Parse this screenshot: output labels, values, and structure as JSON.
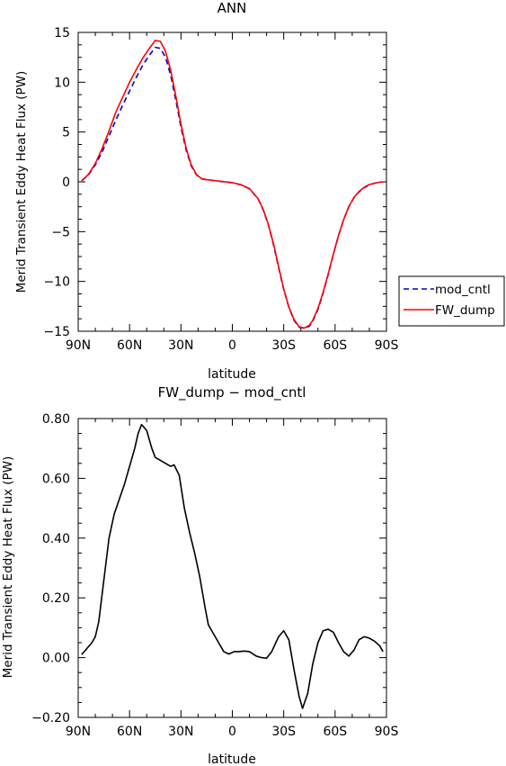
{
  "chart_data": [
    {
      "type": "line",
      "title": "ANN",
      "xlabel": "latitude",
      "ylabel": "Merid Transient Eddy Heat Flux (PW)",
      "xlim": [
        90,
        -90
      ],
      "ylim": [
        -15,
        15
      ],
      "xticks": [
        90,
        60,
        30,
        0,
        -30,
        -60,
        -90
      ],
      "xtick_labels": [
        "90N",
        "60N",
        "30N",
        "0",
        "30S",
        "60S",
        "90S"
      ],
      "yticks": [
        15,
        10,
        5,
        0,
        -5,
        -10,
        -15
      ],
      "ytick_labels": [
        "15",
        "10",
        "5",
        "0",
        "−5",
        "−10",
        "−15"
      ],
      "legend_position": "right",
      "series": [
        {
          "name": "mod_cntl",
          "color": "#0000cc",
          "style": "dashed",
          "x": [
            88,
            84,
            80,
            76,
            72,
            68,
            64,
            60,
            56,
            52,
            48,
            45,
            42,
            39,
            36,
            33,
            30,
            27,
            24,
            21,
            18,
            15,
            10,
            5,
            0,
            -5,
            -10,
            -15,
            -18,
            -21,
            -24,
            -27,
            -30,
            -33,
            -36,
            -39,
            -42,
            -45,
            -47,
            -50,
            -53,
            -56,
            -59,
            -62,
            -65,
            -68,
            -71,
            -74,
            -77,
            -80,
            -84,
            -88
          ],
          "y": [
            0.1,
            0.7,
            1.7,
            3.0,
            4.6,
            6.2,
            7.7,
            9.1,
            10.5,
            11.8,
            12.8,
            13.5,
            13.4,
            12.5,
            10.7,
            8.2,
            5.5,
            3.2,
            1.6,
            0.7,
            0.3,
            0.2,
            0.1,
            0.0,
            -0.1,
            -0.3,
            -0.7,
            -1.7,
            -2.8,
            -4.3,
            -6.3,
            -8.6,
            -10.8,
            -12.6,
            -13.9,
            -14.6,
            -14.7,
            -14.5,
            -14.0,
            -12.8,
            -11.2,
            -9.3,
            -7.3,
            -5.4,
            -3.8,
            -2.5,
            -1.6,
            -1.0,
            -0.6,
            -0.3,
            -0.1,
            0.0
          ]
        },
        {
          "name": "FW_dump",
          "color": "#ff0000",
          "style": "solid",
          "x": [
            88,
            84,
            80,
            76,
            72,
            68,
            64,
            60,
            56,
            52,
            48,
            45,
            42,
            39,
            36,
            33,
            30,
            27,
            24,
            21,
            18,
            15,
            10,
            5,
            0,
            -5,
            -10,
            -15,
            -18,
            -21,
            -24,
            -27,
            -30,
            -33,
            -36,
            -39,
            -42,
            -45,
            -47,
            -50,
            -53,
            -56,
            -59,
            -62,
            -65,
            -68,
            -71,
            -74,
            -77,
            -80,
            -84,
            -88
          ],
          "y": [
            0.1,
            0.75,
            1.85,
            3.35,
            5.1,
            7.0,
            8.5,
            10.0,
            11.3,
            12.5,
            13.5,
            14.2,
            14.1,
            13.1,
            11.2,
            8.6,
            5.8,
            3.4,
            1.7,
            0.75,
            0.32,
            0.22,
            0.12,
            0.02,
            -0.08,
            -0.28,
            -0.68,
            -1.68,
            -2.75,
            -4.25,
            -6.2,
            -8.5,
            -10.75,
            -12.55,
            -13.82,
            -14.55,
            -14.68,
            -14.4,
            -13.9,
            -12.7,
            -11.1,
            -9.22,
            -7.24,
            -5.4,
            -3.8,
            -2.5,
            -1.57,
            -0.96,
            -0.55,
            -0.27,
            -0.1,
            0.0
          ]
        }
      ]
    },
    {
      "type": "line",
      "title": "FW_dump − mod_cntl",
      "xlabel": "latitude",
      "ylabel": "Merid Transient Eddy Heat Flux (PW)",
      "xlim": [
        90,
        -90
      ],
      "ylim": [
        -0.2,
        0.8
      ],
      "xticks": [
        90,
        60,
        30,
        0,
        -30,
        -60,
        -90
      ],
      "xtick_labels": [
        "90N",
        "60N",
        "30N",
        "0",
        "30S",
        "60S",
        "90S"
      ],
      "yticks": [
        0.8,
        0.6,
        0.4,
        0.2,
        0.0,
        -0.2
      ],
      "ytick_labels": [
        "0.80",
        "0.60",
        "0.40",
        "0.20",
        "0.00",
        "−0.20"
      ],
      "series": [
        {
          "color": "#000000",
          "style": "solid",
          "x": [
            88,
            85,
            82,
            80,
            78,
            75,
            72,
            69,
            66,
            63,
            61,
            59,
            57,
            55,
            53,
            50,
            47,
            45,
            42,
            39,
            36,
            34,
            31,
            28,
            25,
            22,
            19,
            16,
            14,
            12,
            10,
            8,
            5,
            2,
            -1,
            -4,
            -7,
            -10,
            -14,
            -17,
            -20,
            -23,
            -27,
            -30,
            -33,
            -36,
            -39,
            -41,
            -44,
            -47,
            -50,
            -53,
            -56,
            -59,
            -62,
            -65,
            -68,
            -71,
            -74,
            -77,
            -80,
            -83,
            -86,
            -88
          ],
          "y": [
            0.01,
            0.03,
            0.05,
            0.07,
            0.12,
            0.26,
            0.4,
            0.48,
            0.53,
            0.58,
            0.62,
            0.66,
            0.7,
            0.75,
            0.78,
            0.76,
            0.7,
            0.67,
            0.66,
            0.65,
            0.64,
            0.645,
            0.61,
            0.5,
            0.42,
            0.35,
            0.27,
            0.17,
            0.11,
            0.09,
            0.07,
            0.05,
            0.02,
            0.012,
            0.02,
            0.02,
            0.022,
            0.02,
            0.005,
            0.0,
            -0.002,
            0.02,
            0.07,
            0.09,
            0.06,
            -0.04,
            -0.13,
            -0.17,
            -0.12,
            -0.02,
            0.05,
            0.09,
            0.095,
            0.085,
            0.05,
            0.02,
            0.005,
            0.025,
            0.06,
            0.07,
            0.065,
            0.055,
            0.04,
            0.02
          ]
        }
      ]
    }
  ]
}
